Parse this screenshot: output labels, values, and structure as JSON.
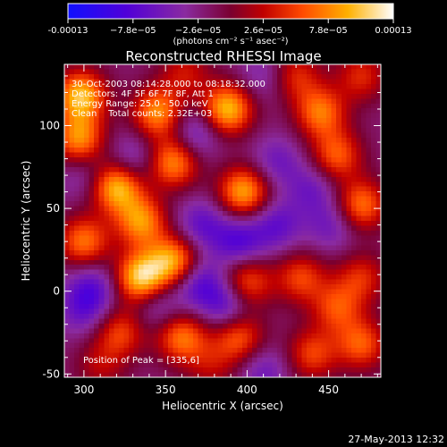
{
  "colorbar": {
    "ticks": [
      "-0.00013",
      "−7.8e−05",
      "−2.6e−05",
      "2.6e−05",
      "7.8e−05",
      "0.00013"
    ],
    "tick_values": [
      -0.00013,
      -7.8e-05,
      -2.6e-05,
      2.6e-05,
      7.8e-05,
      0.00013
    ],
    "range": [
      -0.00013,
      0.00013
    ],
    "units": "(photons cm⁻² s⁻¹ asec⁻²)",
    "colors": [
      "#1010ff",
      "#6a00c8",
      "#8a2aa0",
      "#b00000",
      "#ff4000",
      "#ff9a00",
      "#ffe040",
      "#ffffff"
    ]
  },
  "title": "Reconstructed RHESSI Image",
  "annotations": {
    "time": "30-Oct-2003 08:14:28.000 to 08:18:32.000",
    "detectors": "Detectors: 4F 5F 6F 7F 8F, Att 1",
    "energy": "Energy Range: 25.0 - 50.0 keV",
    "clean": "Clean    Total counts: 2.32E+03",
    "peak": "Position of Peak = [335,6]"
  },
  "footer": "27-May-2013 12:32",
  "chart_data": {
    "type": "heatmap",
    "title": "Reconstructed RHESSI Image",
    "xlabel": "Heliocentric X (arcsec)",
    "ylabel": "Heliocentric Y (arcsec)",
    "xlim": [
      288,
      482
    ],
    "ylim": [
      -52,
      137
    ],
    "xticks": [
      300,
      350,
      400,
      450
    ],
    "yticks": [
      -50,
      0,
      50,
      100
    ],
    "zlim": [
      -0.00013,
      0.00013
    ],
    "peak_position": [
      335,
      6
    ],
    "sources": [
      {
        "x": 335,
        "y": 8,
        "value": 0.00013
      },
      {
        "x": 355,
        "y": 18,
        "value": 0.00011
      },
      {
        "x": 320,
        "y": 63,
        "value": 0.00012
      },
      {
        "x": 335,
        "y": 42,
        "value": 0.0001
      },
      {
        "x": 355,
        "y": 78,
        "value": 0.0001
      },
      {
        "x": 398,
        "y": 60,
        "value": 0.00011
      },
      {
        "x": 388,
        "y": 110,
        "value": 0.00012
      },
      {
        "x": 345,
        "y": 108,
        "value": 0.0001
      },
      {
        "x": 297,
        "y": 92,
        "value": 0.0001
      },
      {
        "x": 300,
        "y": 30,
        "value": 9e-05
      },
      {
        "x": 298,
        "y": 118,
        "value": 0.00012
      },
      {
        "x": 445,
        "y": 108,
        "value": 9e-05
      },
      {
        "x": 470,
        "y": 52,
        "value": 9e-05
      },
      {
        "x": 455,
        "y": 82,
        "value": 8e-05
      },
      {
        "x": 400,
        "y": 5,
        "value": 8e-05
      },
      {
        "x": 433,
        "y": 8,
        "value": 7e-05
      },
      {
        "x": 470,
        "y": 8,
        "value": 6e-05
      },
      {
        "x": 455,
        "y": -10,
        "value": 7e-05
      },
      {
        "x": 360,
        "y": -28,
        "value": 9e-05
      },
      {
        "x": 322,
        "y": -25,
        "value": 7e-05
      },
      {
        "x": 395,
        "y": -28,
        "value": 8e-05
      },
      {
        "x": 440,
        "y": -38,
        "value": 7e-05
      },
      {
        "x": 470,
        "y": -32,
        "value": 8e-05
      },
      {
        "x": 310,
        "y": -45,
        "value": 4e-05
      },
      {
        "x": 378,
        "y": -45,
        "value": 4e-05
      },
      {
        "x": 470,
        "y": 130,
        "value": 6e-05
      },
      {
        "x": 430,
        "y": 130,
        "value": 6e-05
      },
      {
        "x": 362,
        "y": 132,
        "value": 5e-05
      },
      {
        "x": 330,
        "y": 80,
        "value": -4e-05
      },
      {
        "x": 368,
        "y": 95,
        "value": -5e-05
      },
      {
        "x": 418,
        "y": 78,
        "value": -4e-05
      },
      {
        "x": 418,
        "y": 40,
        "value": -5e-05
      },
      {
        "x": 395,
        "y": 30,
        "value": -6e-05
      },
      {
        "x": 372,
        "y": 40,
        "value": -5e-05
      },
      {
        "x": 345,
        "y": -8,
        "value": -4e-05
      },
      {
        "x": 305,
        "y": 2,
        "value": -5e-05
      },
      {
        "x": 300,
        "y": -12,
        "value": -4e-05
      },
      {
        "x": 388,
        "y": -8,
        "value": -6e-05
      },
      {
        "x": 370,
        "y": 5,
        "value": -6e-05
      },
      {
        "x": 410,
        "y": -48,
        "value": -4e-05
      },
      {
        "x": 452,
        "y": 40,
        "value": -4e-05
      },
      {
        "x": 440,
        "y": 62,
        "value": -4e-05
      },
      {
        "x": 300,
        "y": 70,
        "value": -3e-05
      },
      {
        "x": 410,
        "y": 130,
        "value": -3e-05
      }
    ]
  }
}
